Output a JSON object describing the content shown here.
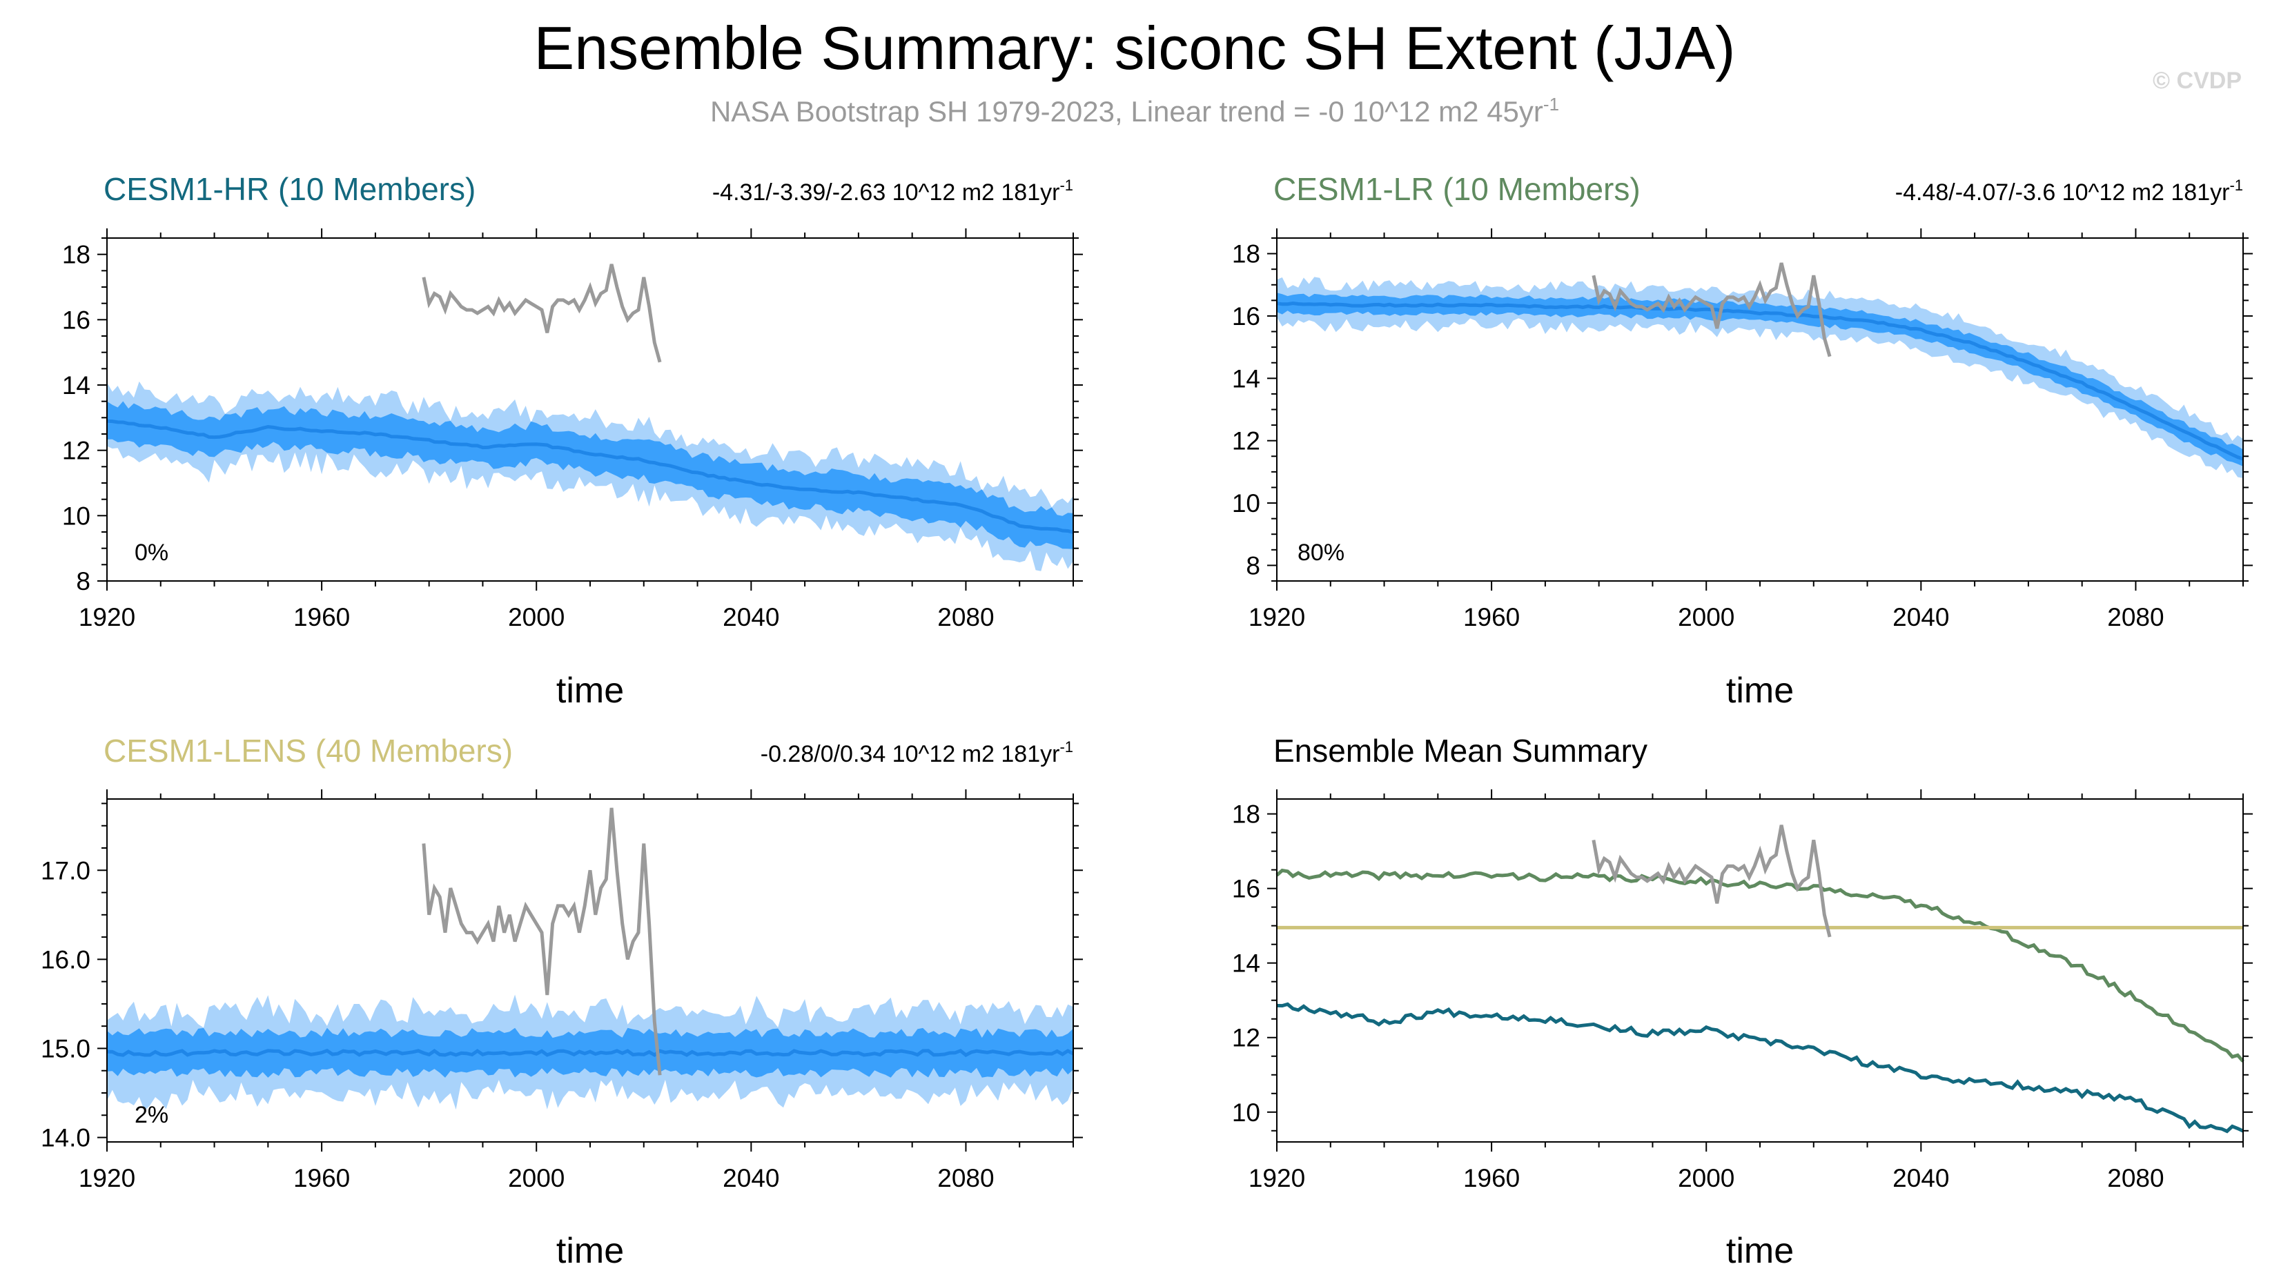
{
  "figure": {
    "title": "Ensemble Summary: siconc SH Extent (JJA)",
    "subtitle": "NASA Bootstrap SH 1979-2023, Linear trend = -0 10^12 m2 45yr",
    "subtitle_sup": "-1",
    "watermark": "© CVDP"
  },
  "colors": {
    "hr": "#13697f",
    "lr": "#5f8a5f",
    "lens": "#cdc37a",
    "obs": "#9a9a9a",
    "band_outer": "#a9d3fb",
    "band_inner": "#3aa0fb",
    "mean_line": "#1f86e8",
    "black": "#000000"
  },
  "panels": [
    {
      "id": "hr",
      "title": "CESM1-HR (10 Members)",
      "trend": "-4.31/-3.39/-2.63 10^12 m2 181yr",
      "trend_sup": "-1",
      "percent": "0%",
      "xlabel": "time"
    },
    {
      "id": "lr",
      "title": "CESM1-LR (10 Members)",
      "trend": "-4.48/-4.07/-3.6 10^12 m2 181yr",
      "trend_sup": "-1",
      "percent": "80%",
      "xlabel": "time"
    },
    {
      "id": "lens",
      "title": "CESM1-LENS (40 Members)",
      "trend": "-0.28/0/0.34 10^12 m2 181yr",
      "trend_sup": "-1",
      "percent": "2%",
      "xlabel": "time"
    },
    {
      "id": "summary",
      "title": "Ensemble Mean Summary",
      "trend": "",
      "trend_sup": "",
      "percent": "",
      "xlabel": "time"
    }
  ],
  "chart_data": [
    {
      "type": "area",
      "panel": "hr",
      "title": "CESM1-HR (10 Members)",
      "xlabel": "time",
      "ylabel": "",
      "xlim": [
        1920,
        2100
      ],
      "ylim": [
        8,
        18.5
      ],
      "x_ticks": [
        1920,
        1960,
        2000,
        2040,
        2080
      ],
      "y_ticks": [
        8,
        10,
        12,
        14,
        16,
        18
      ],
      "y_tick_labels": [
        "8",
        "10",
        "12",
        "14",
        "16",
        "18"
      ],
      "mean_nodes": {
        "x": [
          1920,
          1930,
          1940,
          1950,
          1960,
          1970,
          1980,
          1990,
          2000,
          2010,
          2020,
          2030,
          2040,
          2050,
          2060,
          2070,
          2080,
          2090,
          2100
        ],
        "y": [
          12.9,
          12.7,
          12.4,
          12.7,
          12.6,
          12.5,
          12.3,
          12.1,
          12.2,
          11.9,
          11.7,
          11.3,
          11.0,
          10.8,
          10.7,
          10.5,
          10.3,
          9.7,
          9.5
        ]
      },
      "inner_halfwidth": 0.7,
      "outer_halfwidth": 1.2,
      "observations": {
        "name": "NASA Bootstrap SH",
        "x": [
          1979,
          1980,
          1981,
          1982,
          1983,
          1984,
          1985,
          1986,
          1987,
          1988,
          1989,
          1990,
          1991,
          1992,
          1993,
          1994,
          1995,
          1996,
          1997,
          1998,
          1999,
          2000,
          2001,
          2002,
          2003,
          2004,
          2005,
          2006,
          2007,
          2008,
          2009,
          2010,
          2011,
          2012,
          2013,
          2014,
          2015,
          2016,
          2017,
          2018,
          2019,
          2020,
          2021,
          2022,
          2023
        ],
        "y": [
          17.3,
          16.5,
          16.8,
          16.7,
          16.3,
          16.8,
          16.6,
          16.4,
          16.3,
          16.3,
          16.2,
          16.3,
          16.4,
          16.2,
          16.6,
          16.3,
          16.5,
          16.2,
          16.4,
          16.6,
          16.5,
          16.4,
          16.3,
          15.6,
          16.4,
          16.6,
          16.6,
          16.5,
          16.6,
          16.3,
          16.6,
          17.0,
          16.5,
          16.8,
          16.9,
          17.7,
          17.0,
          16.4,
          16.0,
          16.2,
          16.3,
          17.3,
          16.4,
          15.3,
          14.7
        ]
      }
    },
    {
      "type": "area",
      "panel": "lr",
      "title": "CESM1-LR (10 Members)",
      "xlabel": "time",
      "ylabel": "",
      "xlim": [
        1920,
        2100
      ],
      "ylim": [
        7.5,
        18.5
      ],
      "x_ticks": [
        1920,
        1960,
        2000,
        2040,
        2080
      ],
      "y_ticks": [
        8,
        10,
        12,
        14,
        16,
        18
      ],
      "y_tick_labels": [
        "8",
        "10",
        "12",
        "14",
        "16",
        "18"
      ],
      "mean_nodes": {
        "x": [
          1920,
          1930,
          1940,
          1950,
          1960,
          1970,
          1980,
          1990,
          2000,
          2010,
          2020,
          2030,
          2040,
          2050,
          2060,
          2070,
          2080,
          2090,
          2095,
          2100
        ],
        "y": [
          16.4,
          16.35,
          16.35,
          16.35,
          16.35,
          16.3,
          16.3,
          16.25,
          16.2,
          16.1,
          16.0,
          15.85,
          15.55,
          15.1,
          14.5,
          13.85,
          13.05,
          12.2,
          11.8,
          11.4
        ]
      },
      "inner_halfwidth": 0.35,
      "outer_halfwidth": 0.75,
      "observations": {
        "name": "NASA Bootstrap SH",
        "x": [
          1979,
          1980,
          1981,
          1982,
          1983,
          1984,
          1985,
          1986,
          1987,
          1988,
          1989,
          1990,
          1991,
          1992,
          1993,
          1994,
          1995,
          1996,
          1997,
          1998,
          1999,
          2000,
          2001,
          2002,
          2003,
          2004,
          2005,
          2006,
          2007,
          2008,
          2009,
          2010,
          2011,
          2012,
          2013,
          2014,
          2015,
          2016,
          2017,
          2018,
          2019,
          2020,
          2021,
          2022,
          2023
        ],
        "y": [
          17.3,
          16.5,
          16.8,
          16.7,
          16.3,
          16.8,
          16.6,
          16.4,
          16.3,
          16.3,
          16.2,
          16.3,
          16.4,
          16.2,
          16.6,
          16.3,
          16.5,
          16.2,
          16.4,
          16.6,
          16.5,
          16.4,
          16.3,
          15.6,
          16.4,
          16.6,
          16.6,
          16.5,
          16.6,
          16.3,
          16.6,
          17.0,
          16.5,
          16.8,
          16.9,
          17.7,
          17.0,
          16.4,
          16.0,
          16.2,
          16.3,
          17.3,
          16.4,
          15.3,
          14.7
        ]
      }
    },
    {
      "type": "area",
      "panel": "lens",
      "title": "CESM1-LENS (40 Members)",
      "xlabel": "time",
      "ylabel": "",
      "xlim": [
        1920,
        2100
      ],
      "ylim": [
        13.95,
        17.8
      ],
      "x_ticks": [
        1920,
        1960,
        2000,
        2040,
        2080
      ],
      "y_ticks": [
        14,
        15,
        16,
        17
      ],
      "y_tick_labels": [
        "14.0",
        "15.0",
        "16.0",
        "17.0"
      ],
      "mean_nodes": {
        "x": [
          1920,
          2100
        ],
        "y": [
          14.95,
          14.95
        ]
      },
      "inner_halfwidth": 0.28,
      "outer_halfwidth": 0.55,
      "observations": {
        "name": "NASA Bootstrap SH",
        "x": [
          1979,
          1980,
          1981,
          1982,
          1983,
          1984,
          1985,
          1986,
          1987,
          1988,
          1989,
          1990,
          1991,
          1992,
          1993,
          1994,
          1995,
          1996,
          1997,
          1998,
          1999,
          2000,
          2001,
          2002,
          2003,
          2004,
          2005,
          2006,
          2007,
          2008,
          2009,
          2010,
          2011,
          2012,
          2013,
          2014,
          2015,
          2016,
          2017,
          2018,
          2019,
          2020,
          2021,
          2022,
          2023
        ],
        "y": [
          17.3,
          16.5,
          16.8,
          16.7,
          16.3,
          16.8,
          16.6,
          16.4,
          16.3,
          16.3,
          16.2,
          16.3,
          16.4,
          16.2,
          16.6,
          16.3,
          16.5,
          16.2,
          16.4,
          16.6,
          16.5,
          16.4,
          16.3,
          15.6,
          16.4,
          16.6,
          16.6,
          16.5,
          16.6,
          16.3,
          16.6,
          17.0,
          16.5,
          16.8,
          16.9,
          17.7,
          17.0,
          16.4,
          16.0,
          16.2,
          16.3,
          17.3,
          16.4,
          15.3,
          14.7
        ]
      }
    },
    {
      "type": "line",
      "panel": "summary",
      "title": "Ensemble Mean Summary",
      "xlabel": "time",
      "ylabel": "",
      "xlim": [
        1920,
        2100
      ],
      "ylim": [
        9.2,
        18.4
      ],
      "x_ticks": [
        1920,
        1960,
        2000,
        2040,
        2080
      ],
      "y_ticks": [
        10,
        12,
        14,
        16,
        18
      ],
      "y_tick_labels": [
        "10",
        "12",
        "14",
        "16",
        "18"
      ],
      "series": [
        {
          "name": "CESM1-LR",
          "color": "#5f8a5f",
          "nodes_x": [
            1920,
            1930,
            1940,
            1950,
            1960,
            1970,
            1980,
            1990,
            2000,
            2010,
            2020,
            2030,
            2040,
            2050,
            2060,
            2070,
            2080,
            2090,
            2095,
            2100
          ],
          "nodes_y": [
            16.4,
            16.35,
            16.35,
            16.35,
            16.35,
            16.3,
            16.3,
            16.25,
            16.2,
            16.1,
            16.0,
            15.85,
            15.55,
            15.1,
            14.5,
            13.85,
            13.05,
            12.2,
            11.8,
            11.4
          ]
        },
        {
          "name": "CESM1-LENS",
          "color": "#cdc37a",
          "nodes_x": [
            1920,
            2100
          ],
          "nodes_y": [
            14.95,
            14.95
          ]
        },
        {
          "name": "CESM1-HR",
          "color": "#13697f",
          "nodes_x": [
            1920,
            1930,
            1940,
            1950,
            1960,
            1970,
            1980,
            1990,
            2000,
            2010,
            2020,
            2030,
            2040,
            2050,
            2060,
            2070,
            2080,
            2090,
            2100
          ],
          "nodes_y": [
            12.9,
            12.7,
            12.4,
            12.7,
            12.6,
            12.5,
            12.3,
            12.1,
            12.2,
            11.9,
            11.7,
            11.3,
            11.0,
            10.8,
            10.7,
            10.5,
            10.3,
            9.7,
            9.5
          ]
        }
      ],
      "observations": {
        "name": "NASA Bootstrap SH",
        "x": [
          1979,
          1980,
          1981,
          1982,
          1983,
          1984,
          1985,
          1986,
          1987,
          1988,
          1989,
          1990,
          1991,
          1992,
          1993,
          1994,
          1995,
          1996,
          1997,
          1998,
          1999,
          2000,
          2001,
          2002,
          2003,
          2004,
          2005,
          2006,
          2007,
          2008,
          2009,
          2010,
          2011,
          2012,
          2013,
          2014,
          2015,
          2016,
          2017,
          2018,
          2019,
          2020,
          2021,
          2022,
          2023
        ],
        "y": [
          17.3,
          16.5,
          16.8,
          16.7,
          16.3,
          16.8,
          16.6,
          16.4,
          16.3,
          16.3,
          16.2,
          16.3,
          16.4,
          16.2,
          16.6,
          16.3,
          16.5,
          16.2,
          16.4,
          16.6,
          16.5,
          16.4,
          16.3,
          15.6,
          16.4,
          16.6,
          16.6,
          16.5,
          16.6,
          16.3,
          16.6,
          17.0,
          16.5,
          16.8,
          16.9,
          17.7,
          17.0,
          16.4,
          16.0,
          16.2,
          16.3,
          17.3,
          16.4,
          15.3,
          14.7
        ]
      }
    }
  ]
}
